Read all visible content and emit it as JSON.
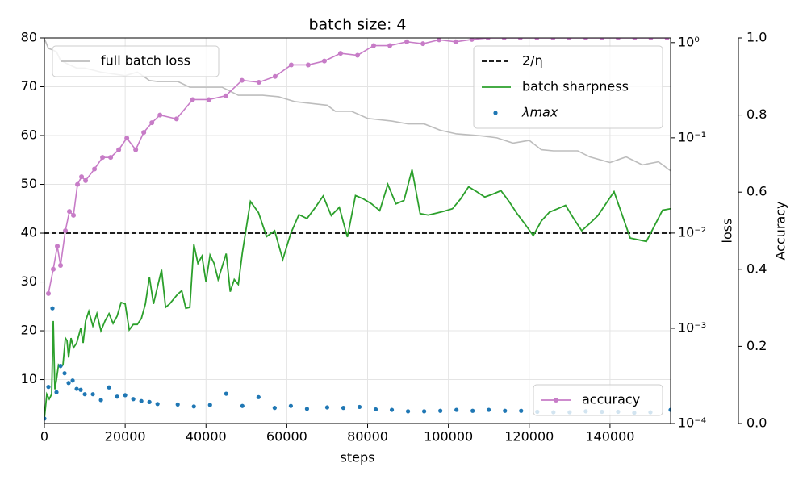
{
  "chart_data": {
    "type": "line",
    "title": "batch size: 4",
    "x_label": "steps",
    "y2_label": "loss",
    "y3_label": "Accuracy",
    "xlim": [
      0,
      155000
    ],
    "xticks": [
      0,
      20000,
      40000,
      60000,
      80000,
      100000,
      120000,
      140000
    ],
    "ylim": [
      1,
      80
    ],
    "yticks": [
      10,
      20,
      30,
      40,
      50,
      60,
      70,
      80
    ],
    "y2lim": [
      0.0001,
      1.12
    ],
    "y2scale": "log",
    "y2ticks": [
      {
        "value": 0.0001,
        "label": "10⁻⁴"
      },
      {
        "value": 0.001,
        "label": "10⁻³"
      },
      {
        "value": 0.01,
        "label": "10⁻²"
      },
      {
        "value": 0.1,
        "label": "10⁻¹"
      },
      {
        "value": 1,
        "label": "10⁰"
      }
    ],
    "y3lim": [
      0,
      1
    ],
    "y3ticks": [
      {
        "value": 0,
        "label": "0.0"
      },
      0.2,
      0.4,
      0.6,
      0.8,
      {
        "value": 1,
        "label": "1.0"
      }
    ],
    "grid": true,
    "series": [
      {
        "name": "full batch loss",
        "style": "line",
        "axis": "y2",
        "color": "#bdbdbd",
        "legend": "upper left",
        "x": [
          0,
          1000,
          2000,
          3000,
          4000,
          6000,
          8000,
          10000,
          14000,
          20000,
          23000,
          26000,
          28000,
          33000,
          36000,
          44000,
          48000,
          54000,
          58000,
          62000,
          70000,
          72000,
          76000,
          80000,
          86000,
          90000,
          94000,
          98000,
          102000,
          108000,
          112000,
          116000,
          120000,
          123000,
          126000,
          132000,
          135000,
          140000,
          144000,
          148000,
          152000,
          155000
        ],
        "values": [
          1.1,
          0.87,
          0.84,
          0.8,
          0.65,
          0.59,
          0.54,
          0.54,
          0.49,
          0.45,
          0.49,
          0.4,
          0.39,
          0.39,
          0.34,
          0.34,
          0.28,
          0.28,
          0.27,
          0.24,
          0.22,
          0.19,
          0.19,
          0.16,
          0.15,
          0.14,
          0.14,
          0.12,
          0.11,
          0.105,
          0.1,
          0.088,
          0.094,
          0.075,
          0.073,
          0.073,
          0.063,
          0.055,
          0.063,
          0.052,
          0.056,
          0.045
        ]
      },
      {
        "name": "2/η",
        "style": "hline",
        "axis": "y",
        "color": "#000000",
        "legend": "upper right",
        "values": [
          40
        ]
      },
      {
        "name": "batch sharpness",
        "style": "line",
        "axis": "y",
        "color": "#2ca02c",
        "legend": "upper right",
        "x": [
          0,
          600,
          1200,
          1800,
          2200,
          2600,
          3000,
          3500,
          4000,
          4600,
          5200,
          5600,
          6000,
          6600,
          7200,
          8000,
          9000,
          9600,
          10200,
          11000,
          12000,
          13000,
          14000,
          15000,
          16000,
          17000,
          18000,
          19000,
          20000,
          21000,
          22000,
          23000,
          24000,
          25000,
          26000,
          27000,
          28000,
          29000,
          30000,
          31000,
          32000,
          33000,
          34000,
          35000,
          36000,
          37000,
          38000,
          39000,
          40000,
          41000,
          42000,
          43000,
          45000,
          46000,
          47000,
          48000,
          49000,
          51000,
          53000,
          55000,
          57000,
          59000,
          61000,
          63000,
          65000,
          67000,
          69000,
          71000,
          73000,
          75000,
          77000,
          79000,
          81000,
          83000,
          85000,
          87000,
          89000,
          91000,
          93000,
          95000,
          97000,
          99000,
          101000,
          103000,
          105000,
          107000,
          109000,
          111000,
          113000,
          115000,
          117000,
          119000,
          121000,
          123000,
          125000,
          127000,
          129000,
          131000,
          133000,
          135000,
          137000,
          141000,
          145000,
          149000,
          153000,
          155000
        ],
        "values": [
          2,
          7,
          6,
          7,
          22,
          8,
          10,
          13,
          12.5,
          13,
          18.5,
          18,
          14.5,
          18.5,
          16.5,
          17.5,
          20.5,
          17.5,
          22,
          24,
          21,
          23.5,
          20,
          22,
          23.5,
          21.5,
          23,
          25.8,
          25.5,
          20.2,
          21.3,
          21.3,
          22.5,
          25.5,
          31,
          25.5,
          29,
          32.5,
          24.8,
          25.5,
          26.5,
          27.5,
          28.2,
          24.6,
          24.8,
          37.7,
          33.8,
          35.3,
          30,
          35.5,
          33.8,
          30.5,
          35.8,
          28,
          30.5,
          29.5,
          36,
          46.5,
          44.2,
          39.3,
          40.5,
          34.6,
          40,
          43.8,
          43,
          45.2,
          47.6,
          43.6,
          45.3,
          39.2,
          47.7,
          47,
          46,
          44.6,
          50,
          46,
          46.7,
          53,
          44,
          43.7,
          44.1,
          44.5,
          45,
          47,
          49.5,
          48.5,
          47.4,
          48,
          48.7,
          46.5,
          44,
          41.8,
          39.5,
          42.5,
          44.3,
          45,
          45.7,
          43,
          40.5,
          42,
          43.6,
          48.5,
          39,
          38.3,
          44.7,
          45
        ]
      },
      {
        "name": "λmax",
        "style": "scatter",
        "axis": "y",
        "color": "#1f77b4",
        "legend": "upper right",
        "x": [
          0,
          1000,
          2000,
          3000,
          4000,
          5000,
          6000,
          7000,
          8000,
          9000,
          10000,
          12000,
          14000,
          16000,
          18000,
          20000,
          22000,
          24000,
          26000,
          28000,
          33000,
          37000,
          41000,
          45000,
          49000,
          53000,
          57000,
          61000,
          65000,
          70000,
          74000,
          78000,
          82000,
          86000,
          90000,
          94000,
          98000,
          102000,
          106000,
          110000,
          114000,
          118000,
          122000,
          126000,
          130000,
          134000,
          138000,
          142000,
          146000,
          150000,
          155000
        ],
        "values": [
          2,
          8.5,
          24.6,
          7.4,
          12.8,
          11.3,
          9.3,
          9.8,
          8.1,
          7.9,
          7,
          7,
          5.8,
          8.4,
          6.5,
          6.8,
          6,
          5.6,
          5.4,
          5,
          4.9,
          4.5,
          4.8,
          7.1,
          4.6,
          6.4,
          4.2,
          4.6,
          4,
          4.3,
          4.2,
          4.4,
          3.9,
          3.8,
          3.5,
          3.5,
          3.6,
          3.8,
          3.6,
          3.8,
          3.6,
          3.6,
          3.4,
          3.3,
          3.3,
          3.5,
          3.4,
          3.4,
          3.2,
          3.3,
          3.8
        ]
      },
      {
        "name": "accuracy",
        "style": "line-marker",
        "axis": "y3",
        "color": "#c77cc7",
        "legend": "lower right",
        "x": [
          1000,
          2200,
          3200,
          4000,
          5200,
          6200,
          7200,
          8200,
          9200,
          10200,
          12400,
          14400,
          16400,
          18400,
          20400,
          22600,
          24600,
          26600,
          28600,
          32700,
          36700,
          40700,
          44900,
          48900,
          53100,
          57100,
          61100,
          65300,
          69300,
          73300,
          77500,
          81500,
          85500,
          89700,
          93700,
          97700,
          101800,
          105800,
          109800,
          113800,
          117800,
          121900,
          125900,
          129900,
          134000,
          138000,
          142000,
          146100,
          150100,
          154100
        ],
        "values": [
          0.337,
          0.4,
          0.46,
          0.41,
          0.5,
          0.55,
          0.54,
          0.62,
          0.64,
          0.63,
          0.66,
          0.69,
          0.69,
          0.71,
          0.74,
          0.71,
          0.755,
          0.78,
          0.8,
          0.79,
          0.84,
          0.84,
          0.85,
          0.89,
          0.885,
          0.9,
          0.93,
          0.93,
          0.94,
          0.96,
          0.955,
          0.98,
          0.98,
          0.99,
          0.985,
          0.995,
          0.99,
          0.996,
          1,
          1,
          1,
          1,
          1,
          1,
          1,
          1,
          1,
          1,
          1,
          1
        ]
      }
    ]
  }
}
